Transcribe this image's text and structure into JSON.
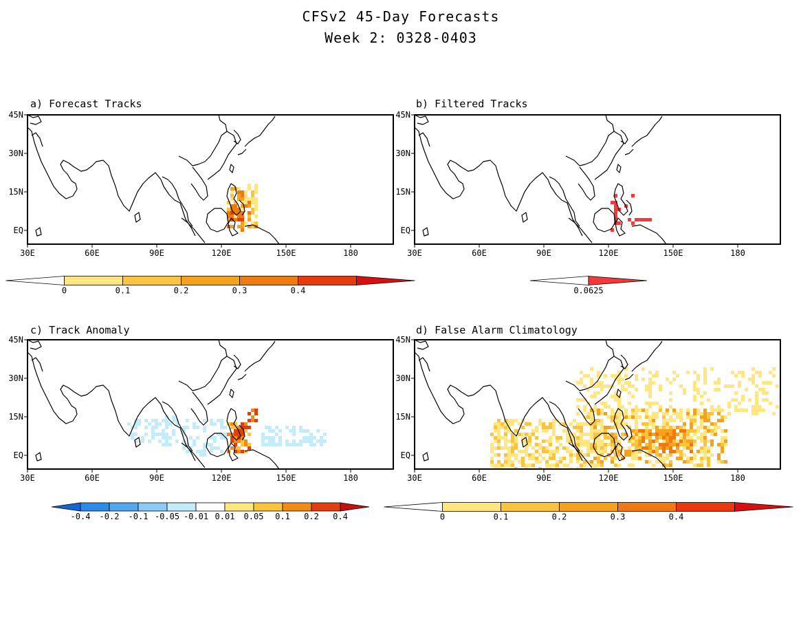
{
  "title": [
    "CFSv2 45-Day Forecasts",
    "Week 2: 0328-0403"
  ],
  "lat_ticks": [
    "45N",
    "30N",
    "15N",
    "EQ"
  ],
  "lon_ticks": [
    "30E",
    "60E",
    "90E",
    "120E",
    "150E",
    "180"
  ],
  "panels": [
    {
      "id": "a",
      "label": "a) Forecast Tracks",
      "colorbar": {
        "labels": [
          "0",
          "0.1",
          "0.2",
          "0.3",
          "0.4"
        ],
        "colors": [
          "#ffffff",
          "#ffe680",
          "#fcc33f",
          "#f6a21c",
          "#f07a10",
          "#e83a0e",
          "#d41010"
        ]
      }
    },
    {
      "id": "b",
      "label": "b) Filtered Tracks",
      "colorbar": {
        "labels": [
          "0.0625"
        ],
        "colors": [
          "#ffffff",
          "#f23a3a"
        ]
      }
    },
    {
      "id": "c",
      "label": "c) Track Anomaly",
      "colorbar": {
        "labels": [
          "-0.4",
          "-0.2",
          "-0.1",
          "-0.05",
          "-0.01",
          "0.01",
          "0.05",
          "0.1",
          "0.2",
          "0.4"
        ],
        "colors": [
          "#1466d4",
          "#2b8be6",
          "#52a8f0",
          "#8ccaf7",
          "#c2ecf9",
          "#ffffff",
          "#ffe680",
          "#fcc33f",
          "#f28c18",
          "#e04010",
          "#c41010"
        ]
      }
    },
    {
      "id": "d",
      "label": "d) False Alarm Climatology",
      "colorbar": {
        "labels": [
          "0",
          "0.1",
          "0.2",
          "0.3",
          "0.4"
        ],
        "colors": [
          "#ffffff",
          "#ffe680",
          "#fcc33f",
          "#f6a21c",
          "#f07a10",
          "#e83a0e",
          "#d41010"
        ]
      }
    }
  ]
}
